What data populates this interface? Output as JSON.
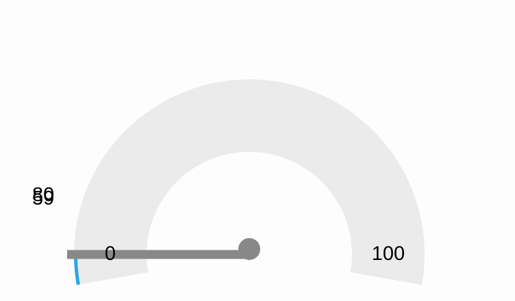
{
  "gauge": {
    "value": 5,
    "min_label": "0",
    "max_label": "100",
    "min": 0,
    "max": 100,
    "value_labels": [
      "80",
      "59"
    ],
    "colors": {
      "background_arc": "#ebebeb",
      "value_arc": "#29a8e0",
      "needle": "#888888",
      "text": "#000000"
    }
  }
}
